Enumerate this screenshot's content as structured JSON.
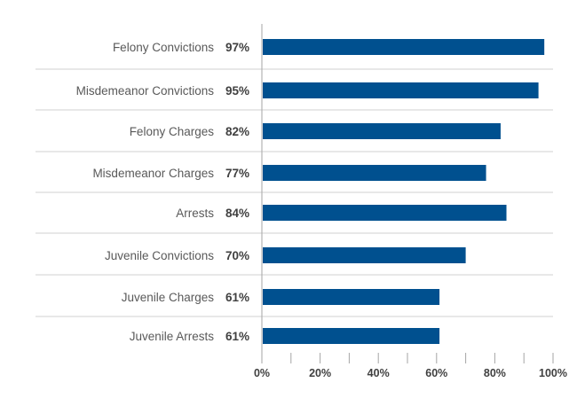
{
  "chart_data": {
    "type": "bar",
    "orientation": "horizontal",
    "categories": [
      "Felony Convictions",
      "Misdemeanor Convictions",
      "Felony Charges",
      "Misdemeanor Charges",
      "Arrests",
      "Juvenile Convictions",
      "Juvenile Charges",
      "Juvenile  Arrests"
    ],
    "values": [
      97,
      95,
      82,
      77,
      84,
      70,
      61,
      61
    ],
    "value_labels": [
      "97%",
      "95%",
      "82%",
      "77%",
      "84%",
      "70%",
      "61%",
      "61%"
    ],
    "xlim": [
      0,
      100
    ],
    "x_ticks": [
      0,
      20,
      40,
      60,
      80,
      100
    ],
    "x_tick_labels": [
      "0%",
      "20%",
      "40%",
      "60%",
      "80%",
      "100%"
    ],
    "minor_tick_step": 10,
    "grid": false,
    "row_separators": true,
    "colors": {
      "bar": "#00508f",
      "label": "#595959",
      "value_label": "#404040",
      "axis": "#a6a6a6",
      "separator": "#d0d0d0"
    }
  }
}
